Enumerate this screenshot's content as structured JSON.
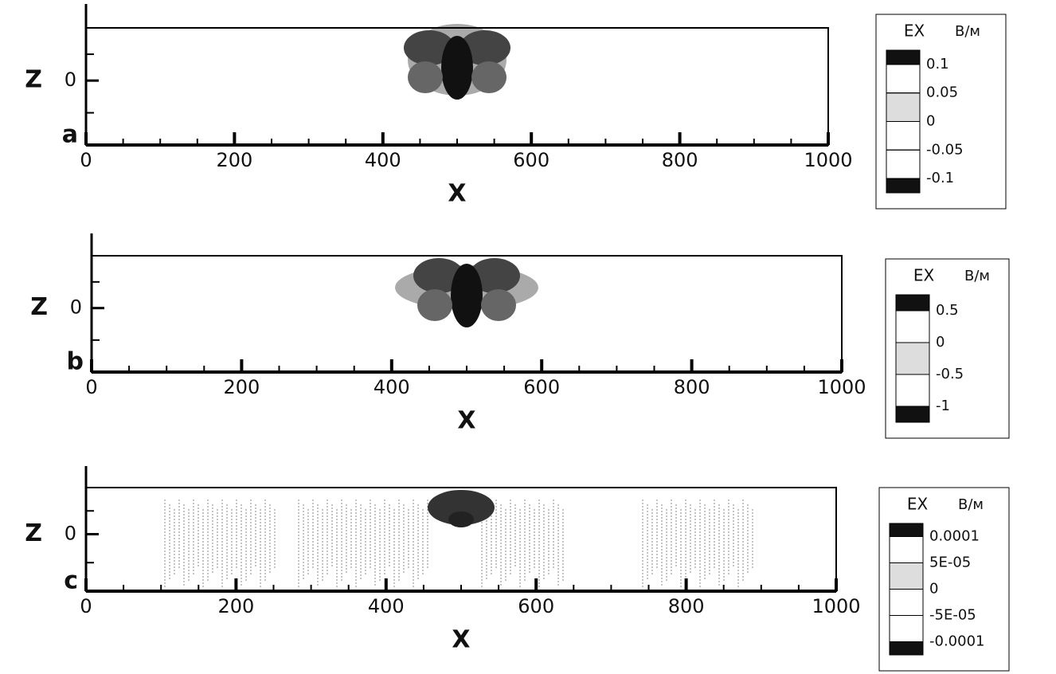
{
  "chart_data": [
    {
      "type": "contour",
      "label": "a",
      "xlabel": "X",
      "ylabel": "Z",
      "xlim": [
        0,
        1000
      ],
      "xticks": [
        0,
        200,
        400,
        600,
        800,
        1000
      ],
      "ylim": [
        -110,
        90
      ],
      "yticks": [
        0
      ],
      "colorbar": {
        "title": "EX",
        "unit": "В/м",
        "levels": [
          0.1,
          0.05,
          0,
          -0.05,
          -0.1
        ]
      }
    },
    {
      "type": "contour",
      "label": "b",
      "xlabel": "X",
      "ylabel": "Z",
      "xlim": [
        0,
        1000
      ],
      "xticks": [
        0,
        200,
        400,
        600,
        800,
        1000
      ],
      "ylim": [
        -110,
        90
      ],
      "yticks": [
        0
      ],
      "colorbar": {
        "title": "EX",
        "unit": "В/м",
        "levels": [
          0.5,
          0,
          -0.5,
          -1
        ]
      }
    },
    {
      "type": "contour",
      "label": "c",
      "xlabel": "X",
      "ylabel": "Z",
      "xlim": [
        0,
        1000
      ],
      "xticks": [
        0,
        200,
        400,
        600,
        800,
        1000
      ],
      "ylim": [
        -110,
        90
      ],
      "yticks": [
        0
      ],
      "colorbar": {
        "title": "EX",
        "unit": "В/м",
        "levels": [
          0.0001,
          {
            "value": 5e-05,
            "label": "5E-05"
          },
          0,
          {
            "value": -5e-05,
            "label": "-5E-05"
          },
          -0.0001
        ]
      }
    }
  ]
}
